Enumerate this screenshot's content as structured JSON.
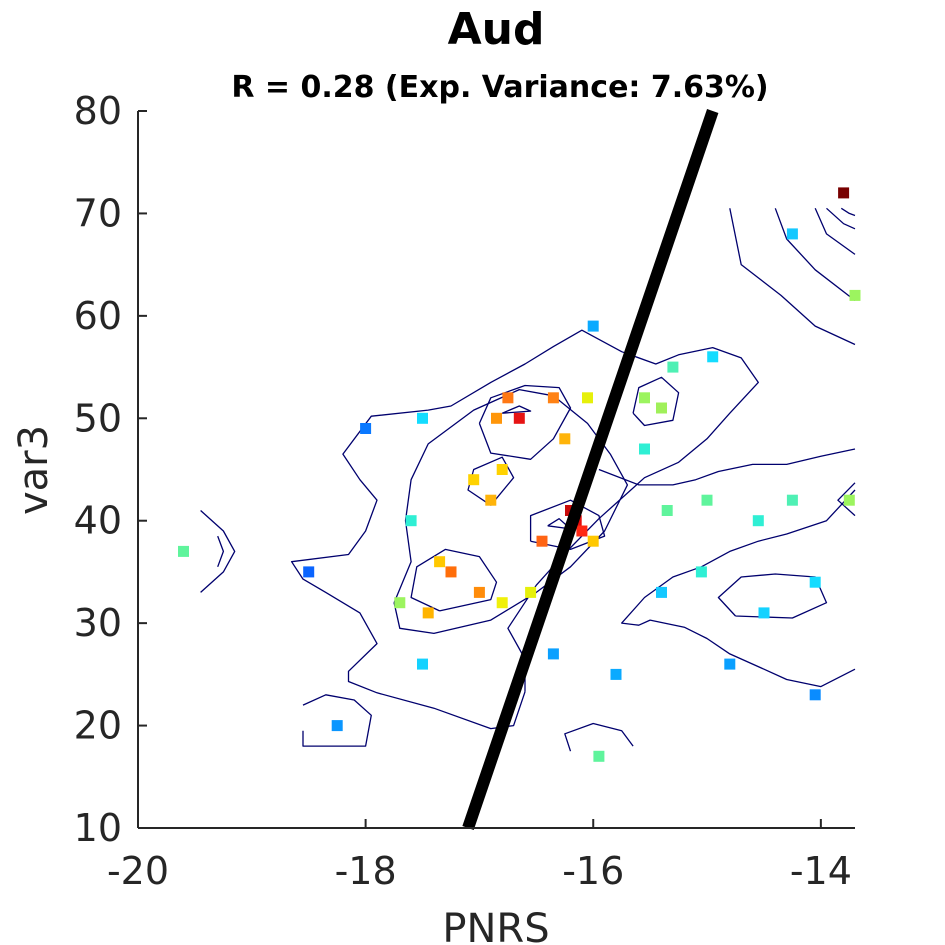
{
  "chart_data": {
    "type": "scatter",
    "title": "Aud",
    "subtitle": "R = 0.28 (Exp. Variance: 7.63%)",
    "xlabel": "PNRS",
    "ylabel": "var3",
    "xlim": [
      -20,
      -13.7
    ],
    "ylim": [
      10,
      80
    ],
    "xticks": [
      -20,
      -18,
      -16,
      -14
    ],
    "yticks": [
      10,
      20,
      30,
      40,
      50,
      60,
      70,
      80
    ],
    "xtick_labels": [
      "-20",
      "-18",
      "-16",
      "-14"
    ],
    "ytick_labels": [
      "10",
      "20",
      "30",
      "40",
      "50",
      "60",
      "70",
      "80"
    ],
    "colormap": "jet",
    "contour_color": "#00006e",
    "regression_line": {
      "x": [
        -17.1,
        -14.95
      ],
      "y": [
        10,
        80
      ],
      "color": "#000000"
    },
    "points": [
      {
        "x": -19.6,
        "y": 37,
        "c": "#5ff49c"
      },
      {
        "x": -18.5,
        "y": 35,
        "c": "#0a64ff"
      },
      {
        "x": -18.25,
        "y": 20,
        "c": "#0a96ff"
      },
      {
        "x": -18.0,
        "y": 49,
        "c": "#0a78ff"
      },
      {
        "x": -17.7,
        "y": 32,
        "c": "#9cf45f"
      },
      {
        "x": -17.6,
        "y": 40,
        "c": "#2fefd4"
      },
      {
        "x": -17.5,
        "y": 26,
        "c": "#14d2ff"
      },
      {
        "x": -17.5,
        "y": 50,
        "c": "#14dcff"
      },
      {
        "x": -17.45,
        "y": 31,
        "c": "#ffb400"
      },
      {
        "x": -17.35,
        "y": 36,
        "c": "#ffc800"
      },
      {
        "x": -17.25,
        "y": 35,
        "c": "#ff6e0a"
      },
      {
        "x": -17.05,
        "y": 44,
        "c": "#ffd200"
      },
      {
        "x": -17.0,
        "y": 33,
        "c": "#ff8c0a"
      },
      {
        "x": -16.9,
        "y": 42,
        "c": "#ffb40a"
      },
      {
        "x": -16.85,
        "y": 50,
        "c": "#ff960a"
      },
      {
        "x": -16.8,
        "y": 45,
        "c": "#ffd200"
      },
      {
        "x": -16.8,
        "y": 32,
        "c": "#f0f00a"
      },
      {
        "x": -16.75,
        "y": 52,
        "c": "#ff7814"
      },
      {
        "x": -16.65,
        "y": 50,
        "c": "#e61414"
      },
      {
        "x": -16.55,
        "y": 33,
        "c": "#e6f00a"
      },
      {
        "x": -16.45,
        "y": 38,
        "c": "#ff6414"
      },
      {
        "x": -16.35,
        "y": 27,
        "c": "#0aa0ff"
      },
      {
        "x": -16.35,
        "y": 52,
        "c": "#ff8214"
      },
      {
        "x": -16.25,
        "y": 48,
        "c": "#ffb40a"
      },
      {
        "x": -16.2,
        "y": 41,
        "c": "#c80a0a"
      },
      {
        "x": -16.15,
        "y": 40,
        "c": "#e60a0a"
      },
      {
        "x": -16.1,
        "y": 39,
        "c": "#ff2814"
      },
      {
        "x": -16.05,
        "y": 52,
        "c": "#e6f00a"
      },
      {
        "x": -16.0,
        "y": 38,
        "c": "#ffc800"
      },
      {
        "x": -16.0,
        "y": 59,
        "c": "#0aaaff"
      },
      {
        "x": -15.95,
        "y": 17,
        "c": "#5ff49c"
      },
      {
        "x": -15.8,
        "y": 25,
        "c": "#0aaaff"
      },
      {
        "x": -15.55,
        "y": 52,
        "c": "#9cf45f"
      },
      {
        "x": -15.55,
        "y": 47,
        "c": "#2fefd4"
      },
      {
        "x": -15.4,
        "y": 51,
        "c": "#a0f05a"
      },
      {
        "x": -15.4,
        "y": 33,
        "c": "#14c8ff"
      },
      {
        "x": -15.35,
        "y": 41,
        "c": "#5ff49c"
      },
      {
        "x": -15.3,
        "y": 55,
        "c": "#4ff0b4"
      },
      {
        "x": -15.05,
        "y": 35,
        "c": "#2fefd4"
      },
      {
        "x": -15.0,
        "y": 42,
        "c": "#5ff49c"
      },
      {
        "x": -14.95,
        "y": 56,
        "c": "#14dcff"
      },
      {
        "x": -14.8,
        "y": 26,
        "c": "#0aa0ff"
      },
      {
        "x": -14.55,
        "y": 40,
        "c": "#2fefd4"
      },
      {
        "x": -14.5,
        "y": 31,
        "c": "#14d2ff"
      },
      {
        "x": -14.25,
        "y": 68,
        "c": "#14c8ff"
      },
      {
        "x": -14.25,
        "y": 42,
        "c": "#4ff0b4"
      },
      {
        "x": -14.05,
        "y": 34,
        "c": "#14dcff"
      },
      {
        "x": -14.05,
        "y": 23,
        "c": "#0a8cff"
      },
      {
        "x": -13.8,
        "y": 72,
        "c": "#780000"
      },
      {
        "x": -13.75,
        "y": 42,
        "c": "#9cf45f"
      },
      {
        "x": -13.7,
        "y": 62,
        "c": "#9cf45f"
      }
    ],
    "contours": [
      [
        [
          -19.45,
          41
        ],
        [
          -19.25,
          39
        ],
        [
          -19.15,
          37
        ],
        [
          -19.25,
          35
        ],
        [
          -19.45,
          33
        ]
      ],
      [
        [
          -19.3,
          38.5
        ],
        [
          -19.25,
          37
        ],
        [
          -19.3,
          35.5
        ]
      ],
      [
        [
          -18.55,
          22
        ],
        [
          -18.35,
          23
        ],
        [
          -18.1,
          22.5
        ],
        [
          -17.95,
          21
        ],
        [
          -18.0,
          18
        ],
        [
          -18.55,
          18
        ],
        [
          -18.55,
          19.5
        ]
      ],
      [
        [
          -16.6,
          23.3
        ],
        [
          -16.7,
          20
        ],
        [
          -16.9,
          19.7
        ],
        [
          -17.4,
          21.7
        ],
        [
          -17.9,
          23.2
        ],
        [
          -18.15,
          24.3
        ],
        [
          -18.15,
          25.3
        ],
        [
          -17.9,
          28
        ],
        [
          -18.05,
          31
        ],
        [
          -18.35,
          33
        ],
        [
          -18.55,
          34.3
        ],
        [
          -18.65,
          36
        ],
        [
          -18.15,
          36.7
        ],
        [
          -18.0,
          39
        ],
        [
          -17.9,
          42
        ],
        [
          -18.05,
          44
        ],
        [
          -18.2,
          46.5
        ],
        [
          -17.95,
          50.2
        ],
        [
          -17.45,
          50.8
        ],
        [
          -17.25,
          51.2
        ],
        [
          -16.9,
          53.5
        ],
        [
          -16.6,
          55.3
        ],
        [
          -16.35,
          57
        ],
        [
          -16.1,
          58.6
        ],
        [
          -15.75,
          56.5
        ],
        [
          -15.45,
          55.3
        ],
        [
          -15.25,
          56.2
        ],
        [
          -14.95,
          56.9
        ],
        [
          -14.7,
          55.9
        ],
        [
          -14.55,
          53.5
        ],
        [
          -14.8,
          50.5
        ],
        [
          -15.0,
          48
        ],
        [
          -15.25,
          45.7
        ],
        [
          -15.55,
          44.2
        ],
        [
          -15.95,
          40.2
        ],
        [
          -16.25,
          36.8
        ],
        [
          -16.5,
          33.7
        ],
        [
          -16.75,
          29.5
        ],
        [
          -16.6,
          26.5
        ],
        [
          -16.6,
          23.3
        ]
      ],
      [
        [
          -17.75,
          32
        ],
        [
          -17.6,
          36
        ],
        [
          -17.65,
          40
        ],
        [
          -17.6,
          44
        ],
        [
          -17.45,
          47.5
        ],
        [
          -17.05,
          50.8
        ],
        [
          -16.65,
          52.8
        ],
        [
          -16.35,
          52.2
        ],
        [
          -16.05,
          49.5
        ],
        [
          -15.85,
          46.5
        ],
        [
          -15.7,
          43.5
        ],
        [
          -15.9,
          39
        ],
        [
          -16.2,
          35.5
        ],
        [
          -16.5,
          33
        ],
        [
          -16.9,
          30.3
        ],
        [
          -17.4,
          29
        ],
        [
          -17.7,
          29.5
        ],
        [
          -17.75,
          32
        ]
      ],
      [
        [
          -17.35,
          31.2
        ],
        [
          -17.6,
          32.5
        ],
        [
          -17.55,
          35.5
        ],
        [
          -17.3,
          37.2
        ],
        [
          -17.0,
          36.5
        ],
        [
          -16.85,
          34
        ],
        [
          -16.9,
          32.3
        ],
        [
          -17.35,
          31.2
        ]
      ],
      [
        [
          -16.9,
          41.5
        ],
        [
          -17.1,
          43
        ],
        [
          -17.05,
          45
        ],
        [
          -16.8,
          46.2
        ],
        [
          -16.7,
          44.2
        ],
        [
          -16.9,
          41.5
        ]
      ],
      [
        [
          -17.0,
          49.5
        ],
        [
          -16.9,
          52
        ],
        [
          -16.6,
          53.2
        ],
        [
          -16.3,
          53
        ],
        [
          -16.2,
          51
        ],
        [
          -16.35,
          48
        ],
        [
          -16.55,
          46
        ],
        [
          -16.9,
          46.6
        ],
        [
          -17.0,
          49.5
        ]
      ],
      [
        [
          -16.8,
          50.5
        ],
        [
          -16.65,
          51.2
        ],
        [
          -16.55,
          50.7
        ],
        [
          -16.8,
          50.5
        ]
      ],
      [
        [
          -16.55,
          38
        ],
        [
          -16.55,
          40.5
        ],
        [
          -16.2,
          42
        ],
        [
          -15.95,
          40.5
        ],
        [
          -15.9,
          38.5
        ],
        [
          -16.2,
          37.2
        ],
        [
          -16.55,
          38
        ]
      ],
      [
        [
          -16.4,
          39.5
        ],
        [
          -16.3,
          40.2
        ],
        [
          -16.2,
          39.2
        ],
        [
          -16.4,
          39.5
        ]
      ],
      [
        [
          -15.65,
          50.5
        ],
        [
          -15.6,
          53
        ],
        [
          -15.4,
          54
        ],
        [
          -15.25,
          52.5
        ],
        [
          -15.3,
          49.8
        ],
        [
          -15.55,
          49.3
        ],
        [
          -15.65,
          50.5
        ]
      ],
      [
        [
          -16.2,
          17.5
        ],
        [
          -16.25,
          19.2
        ],
        [
          -16.0,
          20.2
        ],
        [
          -15.75,
          19.5
        ],
        [
          -15.65,
          18
        ]
      ],
      [
        [
          -13.7,
          25.5
        ],
        [
          -14.0,
          23.8
        ],
        [
          -14.3,
          24.5
        ],
        [
          -14.5,
          25.5
        ],
        [
          -14.8,
          27
        ],
        [
          -15.0,
          28.5
        ],
        [
          -15.2,
          29.6
        ],
        [
          -15.5,
          30.3
        ],
        [
          -15.6,
          29.8
        ],
        [
          -15.75,
          30
        ],
        [
          -15.55,
          32.5
        ],
        [
          -15.3,
          34.5
        ],
        [
          -15.05,
          35.5
        ],
        [
          -14.8,
          37
        ],
        [
          -14.55,
          38
        ],
        [
          -14.3,
          38.7
        ],
        [
          -13.95,
          40
        ],
        [
          -13.7,
          43
        ]
      ],
      [
        [
          -14.75,
          30.7
        ],
        [
          -14.9,
          32.5
        ],
        [
          -14.7,
          34.5
        ],
        [
          -14.4,
          34.8
        ],
        [
          -14.05,
          34.5
        ],
        [
          -13.95,
          32
        ],
        [
          -14.25,
          30.5
        ],
        [
          -14.75,
          30.7
        ]
      ],
      [
        [
          -15.95,
          45
        ],
        [
          -15.6,
          43.5
        ],
        [
          -15.3,
          43.5
        ],
        [
          -15.1,
          44
        ],
        [
          -14.9,
          44.8
        ],
        [
          -14.6,
          45.5
        ],
        [
          -14.3,
          45.5
        ],
        [
          -14.0,
          46.3
        ],
        [
          -13.7,
          47
        ]
      ],
      [
        [
          -13.7,
          43.7
        ],
        [
          -13.85,
          42
        ],
        [
          -13.7,
          40.5
        ]
      ],
      [
        [
          -14.8,
          70.5
        ],
        [
          -14.7,
          65
        ],
        [
          -14.35,
          62
        ],
        [
          -14.05,
          59
        ],
        [
          -13.7,
          57.2
        ]
      ],
      [
        [
          -14.4,
          70.5
        ],
        [
          -14.3,
          67.5
        ],
        [
          -14.05,
          64.5
        ],
        [
          -13.7,
          61.5
        ]
      ],
      [
        [
          -14.05,
          70.5
        ],
        [
          -13.95,
          68
        ],
        [
          -13.7,
          66
        ]
      ],
      [
        [
          -13.95,
          70.5
        ],
        [
          -13.8,
          69
        ],
        [
          -13.7,
          68.5
        ]
      ],
      [
        [
          -13.82,
          70.5
        ],
        [
          -13.75,
          70.0
        ],
        [
          -13.7,
          69.8
        ]
      ]
    ]
  }
}
